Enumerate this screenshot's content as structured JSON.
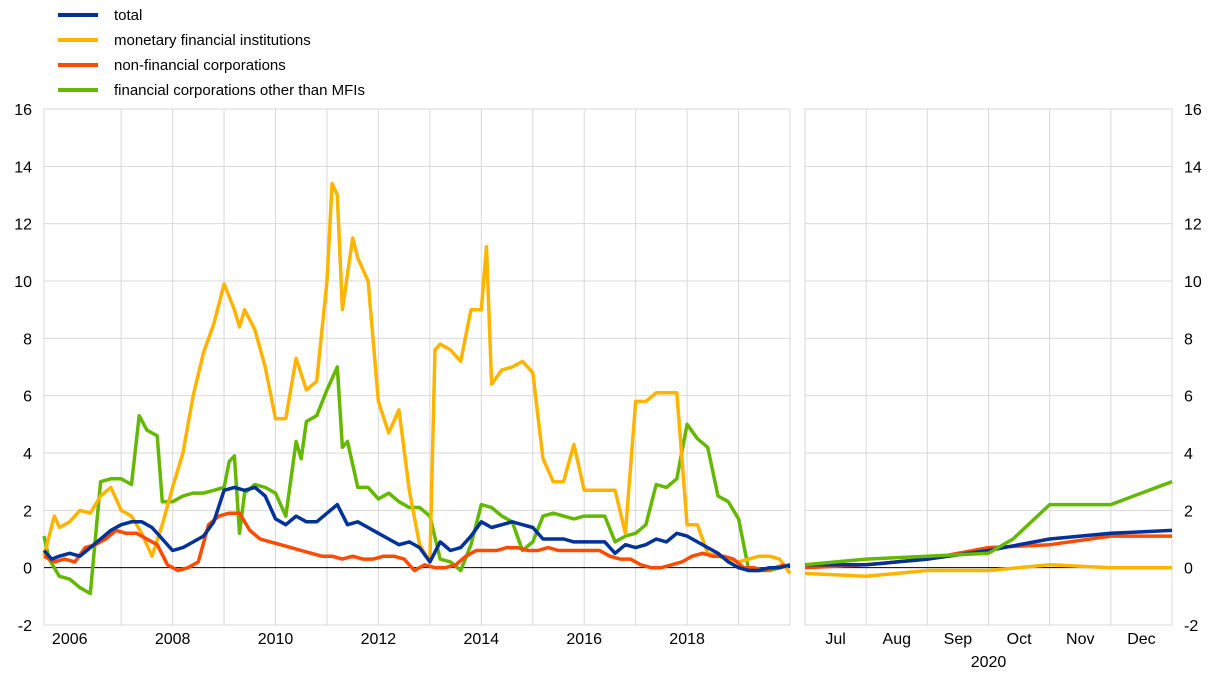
{
  "chart_data": [
    {
      "type": "line",
      "panel": "left",
      "ylim": [
        -2,
        16
      ],
      "yticks": [
        -2,
        0,
        2,
        4,
        6,
        8,
        10,
        12,
        14,
        16
      ],
      "xlim": [
        2005.5,
        2020.0
      ],
      "xtick_labels": [
        "2006",
        "2008",
        "2010",
        "2012",
        "2014",
        "2016",
        "2018"
      ],
      "grid": true,
      "legend_position": "top-left",
      "series": [
        {
          "name": "total",
          "color": "#003299",
          "x": [
            2005.5,
            2005.65,
            2005.8,
            2006.0,
            2006.2,
            2006.4,
            2006.6,
            2006.8,
            2007.0,
            2007.2,
            2007.4,
            2007.6,
            2007.8,
            2008.0,
            2008.2,
            2008.4,
            2008.6,
            2008.8,
            2009.0,
            2009.2,
            2009.4,
            2009.6,
            2009.8,
            2010.0,
            2010.2,
            2010.4,
            2010.6,
            2010.8,
            2011.0,
            2011.2,
            2011.4,
            2011.6,
            2011.8,
            2012.0,
            2012.2,
            2012.4,
            2012.6,
            2012.8,
            2013.0,
            2013.2,
            2013.4,
            2013.6,
            2013.8,
            2014.0,
            2014.2,
            2014.4,
            2014.6,
            2014.8,
            2015.0,
            2015.2,
            2015.4,
            2015.6,
            2015.8,
            2016.0,
            2016.2,
            2016.4,
            2016.6,
            2016.8,
            2017.0,
            2017.2,
            2017.4,
            2017.6,
            2017.8,
            2018.0,
            2018.2,
            2018.4,
            2018.6,
            2018.8,
            2019.0,
            2019.2,
            2019.4,
            2019.6,
            2019.8,
            2020.0
          ],
          "values": [
            0.6,
            0.3,
            0.4,
            0.5,
            0.4,
            0.7,
            1.0,
            1.3,
            1.5,
            1.6,
            1.6,
            1.4,
            1.0,
            0.6,
            0.7,
            0.9,
            1.1,
            1.6,
            2.7,
            2.8,
            2.7,
            2.8,
            2.5,
            1.7,
            1.5,
            1.8,
            1.6,
            1.6,
            1.9,
            2.2,
            1.5,
            1.6,
            1.4,
            1.2,
            1.0,
            0.8,
            0.9,
            0.7,
            0.2,
            0.9,
            0.6,
            0.7,
            1.1,
            1.6,
            1.4,
            1.5,
            1.6,
            1.5,
            1.4,
            1.0,
            1.0,
            1.0,
            0.9,
            0.9,
            0.9,
            0.9,
            0.5,
            0.8,
            0.7,
            0.8,
            1.0,
            0.9,
            1.2,
            1.1,
            0.9,
            0.7,
            0.5,
            0.2,
            0.0,
            -0.1,
            -0.1,
            0.0,
            0.0,
            0.1
          ]
        },
        {
          "name": "monetary financial institutions",
          "color": "#FFB400",
          "x": [
            2005.5,
            2005.7,
            2005.8,
            2006.0,
            2006.2,
            2006.4,
            2006.6,
            2006.8,
            2007.0,
            2007.2,
            2007.4,
            2007.6,
            2007.8,
            2008.0,
            2008.2,
            2008.4,
            2008.6,
            2008.8,
            2009.0,
            2009.2,
            2009.3,
            2009.4,
            2009.6,
            2009.8,
            2010.0,
            2010.2,
            2010.4,
            2010.6,
            2010.8,
            2011.0,
            2011.1,
            2011.2,
            2011.3,
            2011.5,
            2011.6,
            2011.8,
            2012.0,
            2012.2,
            2012.4,
            2012.6,
            2012.8,
            2013.0,
            2013.1,
            2013.2,
            2013.4,
            2013.6,
            2013.8,
            2014.0,
            2014.1,
            2014.2,
            2014.4,
            2014.6,
            2014.8,
            2015.0,
            2015.2,
            2015.4,
            2015.6,
            2015.8,
            2016.0,
            2016.2,
            2016.4,
            2016.6,
            2016.8,
            2017.0,
            2017.2,
            2017.4,
            2017.6,
            2017.8,
            2018.0,
            2018.2,
            2018.4,
            2018.6,
            2018.8,
            2019.0,
            2019.2,
            2019.4,
            2019.6,
            2019.8,
            2020.0
          ],
          "values": [
            0.4,
            1.8,
            1.4,
            1.6,
            2.0,
            1.9,
            2.5,
            2.8,
            2.0,
            1.8,
            1.2,
            0.4,
            1.5,
            2.8,
            4.0,
            6.0,
            7.5,
            8.5,
            9.9,
            9.0,
            8.4,
            9.0,
            8.3,
            7.0,
            5.2,
            5.2,
            7.3,
            6.2,
            6.5,
            10.0,
            13.4,
            13.0,
            9.0,
            11.5,
            10.8,
            10.0,
            5.8,
            4.7,
            5.5,
            2.7,
            0.8,
            0.2,
            7.6,
            7.8,
            7.6,
            7.2,
            9.0,
            9.0,
            11.2,
            6.4,
            6.9,
            7.0,
            7.2,
            6.8,
            3.8,
            3.0,
            3.0,
            4.3,
            2.7,
            2.7,
            2.7,
            2.7,
            1.2,
            5.8,
            5.8,
            6.1,
            6.1,
            6.1,
            1.5,
            1.5,
            0.5,
            0.4,
            0.3,
            0.2,
            0.3,
            0.4,
            0.4,
            0.3,
            -0.2
          ]
        },
        {
          "name": "non-financial corporations",
          "color": "#FF4B00",
          "x": [
            2005.5,
            2005.7,
            2005.9,
            2006.1,
            2006.3,
            2006.5,
            2006.7,
            2006.9,
            2007.1,
            2007.3,
            2007.5,
            2007.7,
            2007.9,
            2008.1,
            2008.3,
            2008.5,
            2008.7,
            2008.9,
            2009.1,
            2009.3,
            2009.5,
            2009.7,
            2009.9,
            2010.1,
            2010.3,
            2010.5,
            2010.7,
            2010.9,
            2011.1,
            2011.3,
            2011.5,
            2011.7,
            2011.9,
            2012.1,
            2012.3,
            2012.5,
            2012.7,
            2012.9,
            2013.1,
            2013.3,
            2013.5,
            2013.7,
            2013.9,
            2014.1,
            2014.3,
            2014.5,
            2014.7,
            2014.9,
            2015.1,
            2015.3,
            2015.5,
            2015.7,
            2015.9,
            2016.1,
            2016.3,
            2016.5,
            2016.7,
            2016.9,
            2017.1,
            2017.3,
            2017.5,
            2017.7,
            2017.9,
            2018.1,
            2018.3,
            2018.5,
            2018.7,
            2018.9,
            2019.1,
            2019.3,
            2019.5,
            2019.7,
            2019.9
          ],
          "values": [
            0.4,
            0.2,
            0.3,
            0.2,
            0.7,
            0.8,
            1.0,
            1.3,
            1.2,
            1.2,
            1.0,
            0.8,
            0.1,
            -0.1,
            0.0,
            0.2,
            1.5,
            1.8,
            1.9,
            1.9,
            1.3,
            1.0,
            0.9,
            0.8,
            0.7,
            0.6,
            0.5,
            0.4,
            0.4,
            0.3,
            0.4,
            0.3,
            0.3,
            0.4,
            0.4,
            0.3,
            -0.1,
            0.1,
            0.0,
            0.0,
            0.1,
            0.4,
            0.6,
            0.6,
            0.6,
            0.7,
            0.7,
            0.6,
            0.6,
            0.7,
            0.6,
            0.6,
            0.6,
            0.6,
            0.6,
            0.4,
            0.3,
            0.3,
            0.1,
            0.0,
            0.0,
            0.1,
            0.2,
            0.4,
            0.5,
            0.4,
            0.4,
            0.3,
            0.0,
            0.0,
            -0.1,
            0.0,
            0.1
          ]
        },
        {
          "name": "financial corporations other than MFIs",
          "color": "#65B800",
          "x": [
            2005.5,
            2005.6,
            2005.8,
            2006.0,
            2006.2,
            2006.4,
            2006.6,
            2006.8,
            2007.0,
            2007.2,
            2007.35,
            2007.5,
            2007.7,
            2007.8,
            2008.0,
            2008.2,
            2008.4,
            2008.6,
            2008.8,
            2009.0,
            2009.1,
            2009.2,
            2009.3,
            2009.4,
            2009.6,
            2009.8,
            2010.0,
            2010.2,
            2010.4,
            2010.5,
            2010.6,
            2010.8,
            2011.0,
            2011.2,
            2011.3,
            2011.4,
            2011.6,
            2011.8,
            2012.0,
            2012.2,
            2012.4,
            2012.6,
            2012.8,
            2013.0,
            2013.2,
            2013.4,
            2013.6,
            2013.8,
            2014.0,
            2014.2,
            2014.4,
            2014.6,
            2014.8,
            2015.0,
            2015.2,
            2015.4,
            2015.6,
            2015.8,
            2016.0,
            2016.2,
            2016.4,
            2016.6,
            2016.8,
            2017.0,
            2017.2,
            2017.4,
            2017.6,
            2017.8,
            2018.0,
            2018.2,
            2018.4,
            2018.6,
            2018.8,
            2019.0,
            2019.2,
            2019.4,
            2019.6,
            2019.8,
            2020.0
          ],
          "values": [
            1.1,
            0.3,
            -0.3,
            -0.4,
            -0.7,
            -0.9,
            3.0,
            3.1,
            3.1,
            2.9,
            5.3,
            4.8,
            4.6,
            2.3,
            2.3,
            2.5,
            2.6,
            2.6,
            2.7,
            2.8,
            3.7,
            3.9,
            1.2,
            2.6,
            2.9,
            2.8,
            2.6,
            1.8,
            4.4,
            3.8,
            5.1,
            5.3,
            6.2,
            7.0,
            4.2,
            4.4,
            2.8,
            2.8,
            2.4,
            2.6,
            2.3,
            2.1,
            2.1,
            1.8,
            0.3,
            0.2,
            -0.1,
            0.8,
            2.2,
            2.1,
            1.8,
            1.6,
            0.6,
            0.9,
            1.8,
            1.9,
            1.8,
            1.7,
            1.8,
            1.8,
            1.8,
            0.9,
            1.1,
            1.2,
            1.5,
            2.9,
            2.8,
            3.1,
            5.0,
            4.5,
            4.2,
            2.5,
            2.3,
            1.7,
            -0.1,
            -0.1,
            -0.1,
            0.0,
            0.1
          ]
        }
      ]
    },
    {
      "type": "line",
      "panel": "right",
      "ylim": [
        -2,
        16
      ],
      "yticks": [
        -2,
        0,
        2,
        4,
        6,
        8,
        10,
        12,
        14,
        16
      ],
      "categories": [
        "Jul",
        "Aug",
        "Sep",
        "Oct",
        "Nov",
        "Dec"
      ],
      "xlabel": "2020",
      "grid": true,
      "series": [
        {
          "name": "total",
          "color": "#003299",
          "x": [
            0,
            1,
            2,
            3,
            4,
            5,
            6
          ],
          "values": [
            0.1,
            0.1,
            0.3,
            0.6,
            1.0,
            1.2,
            1.3
          ]
        },
        {
          "name": "monetary financial institutions",
          "color": "#FFB400",
          "x": [
            0,
            1,
            2,
            3,
            4,
            5,
            6
          ],
          "values": [
            -0.2,
            -0.3,
            -0.1,
            -0.1,
            0.1,
            0.0,
            0.0
          ]
        },
        {
          "name": "non-financial corporations",
          "color": "#FF4B00",
          "x": [
            0,
            1,
            2,
            3,
            4,
            5,
            6
          ],
          "values": [
            0.0,
            0.1,
            0.3,
            0.7,
            0.8,
            1.1,
            1.1
          ]
        },
        {
          "name": "financial corporations other than MFIs",
          "color": "#65B800",
          "x": [
            0,
            1,
            2,
            3,
            3.4,
            4,
            5,
            6
          ],
          "values": [
            0.1,
            0.3,
            0.4,
            0.5,
            1.0,
            2.2,
            2.2,
            3.0
          ]
        }
      ]
    }
  ]
}
